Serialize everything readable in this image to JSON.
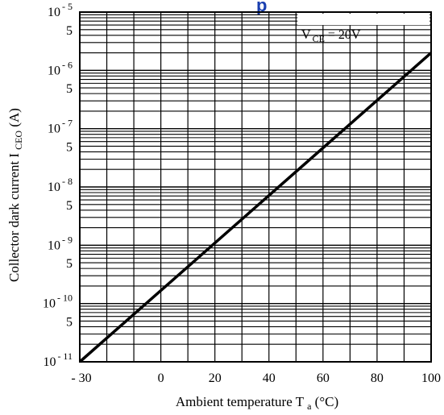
{
  "chart_data": {
    "type": "line",
    "title_fragment": "p",
    "xlabel": {
      "main": "Ambient temperature T",
      "sub": "a",
      "unit": " (°C)"
    },
    "ylabel": {
      "main": "Collector dark current I",
      "sub": "CEO",
      "unit": " (A)"
    },
    "x_scale": "linear",
    "y_scale": "log",
    "xlim": [
      -30,
      100
    ],
    "ylim": [
      1e-11,
      1e-05
    ],
    "x_ticks": [
      {
        "value": -30,
        "label": "- 30"
      },
      {
        "value": 0,
        "label": "0"
      },
      {
        "value": 20,
        "label": "20"
      },
      {
        "value": 40,
        "label": "40"
      },
      {
        "value": 60,
        "label": "60"
      },
      {
        "value": 80,
        "label": "80"
      },
      {
        "value": 100,
        "label": "100"
      }
    ],
    "y_decade_labels": [
      {
        "value": 1e-11,
        "base": "10",
        "exp": "- 11"
      },
      {
        "value": 1e-10,
        "base": "10",
        "exp": "- 10"
      },
      {
        "value": 1e-09,
        "base": "10",
        "exp": "- 9"
      },
      {
        "value": 1e-08,
        "base": "10",
        "exp": "- 8"
      },
      {
        "value": 1e-07,
        "base": "10",
        "exp": "- 7"
      },
      {
        "value": 1e-06,
        "base": "10",
        "exp": "- 6"
      },
      {
        "value": 1e-05,
        "base": "10",
        "exp": "- 5"
      }
    ],
    "y_minor_label": "5",
    "grid": true,
    "annotation": {
      "main": "V",
      "sub": "CE",
      "rest": " = 20V",
      "position": "top-right"
    },
    "series": [
      {
        "x": [
          -30,
          100
        ],
        "y": [
          1e-11,
          2e-06
        ]
      }
    ]
  }
}
